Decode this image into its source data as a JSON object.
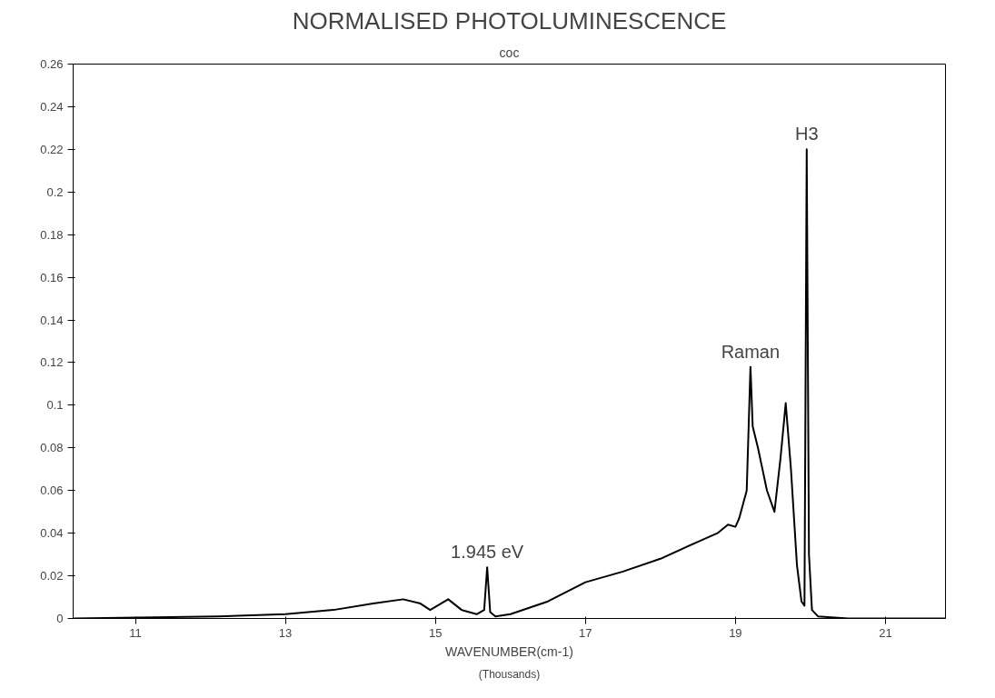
{
  "chart_data": {
    "type": "line",
    "title": "NORMALISED PHOTOLUMINESCENCE",
    "subtitle": "coc",
    "xlabel": "WAVENUMBER(cm-1)",
    "x": [
      10.17,
      12.1,
      13.0,
      13.64,
      14.17,
      14.57,
      14.8,
      14.93,
      15.17,
      15.35,
      15.55,
      15.65,
      15.69,
      15.73,
      15.8,
      16.0,
      16.5,
      17.0,
      17.5,
      18.0,
      18.5,
      18.76,
      18.9,
      19.0,
      19.05,
      19.15,
      19.2,
      19.23,
      19.3,
      19.42,
      19.52,
      19.6,
      19.67,
      19.74,
      19.82,
      19.88,
      19.92,
      19.95,
      19.98,
      20.02,
      20.1,
      20.5,
      21.8
    ],
    "series": [
      {
        "color": "#000000",
        "values": [
          0.0,
          0.001,
          0.002,
          0.004,
          0.007,
          0.009,
          0.007,
          0.004,
          0.009,
          0.004,
          0.002,
          0.004,
          0.024,
          0.003,
          0.001,
          0.002,
          0.008,
          0.017,
          0.022,
          0.028,
          0.036,
          0.04,
          0.044,
          0.043,
          0.047,
          0.06,
          0.118,
          0.09,
          0.08,
          0.06,
          0.05,
          0.075,
          0.101,
          0.07,
          0.025,
          0.008,
          0.006,
          0.22,
          0.03,
          0.004,
          0.001,
          0.0,
          0.0
        ]
      }
    ],
    "xlim": [
      10.17,
      21.8
    ],
    "ylim": [
      0,
      0.26
    ],
    "xticks": [
      11,
      13,
      15,
      17,
      19,
      21
    ],
    "yticks": [
      0,
      0.02,
      0.04,
      0.06,
      0.08,
      0.1,
      0.12,
      0.14,
      0.16,
      0.18,
      0.2,
      0.22,
      0.24,
      0.26
    ],
    "annotations": [
      {
        "text": "1.945 eV",
        "x": 15.69,
        "y": 0.024
      },
      {
        "text": "Raman",
        "x": 19.2,
        "y": 0.118
      },
      {
        "text": "H3",
        "x": 19.95,
        "y": 0.22
      },
      "(Thousands)"
    ],
    "grid": false,
    "marker": "none",
    "line_style": "solid"
  }
}
